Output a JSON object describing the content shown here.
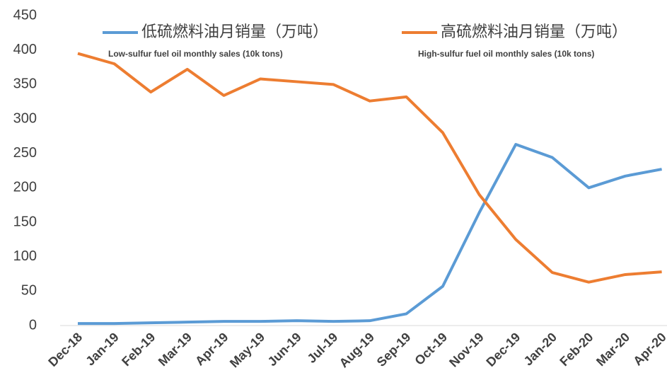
{
  "chart_data": {
    "type": "line",
    "categories": [
      "Dec-18",
      "Jan-19",
      "Feb-19",
      "Mar-19",
      "Apr-19",
      "May-19",
      "Jun-19",
      "Jul-19",
      "Aug-19",
      "Sep-19",
      "Oct-19",
      "Nov-19",
      "Dec-19",
      "Jan-20",
      "Feb-20",
      "Mar-20",
      "Apr-20"
    ],
    "series": [
      {
        "name": "低硫燃料油月销量（万吨）",
        "name_en": "Low-sulfur fuel oil monthly sales (10k tons)",
        "color": "#5b9bd5",
        "values": [
          3,
          3,
          4,
          5,
          6,
          6,
          7,
          6,
          7,
          17,
          57,
          164,
          263,
          244,
          200,
          217,
          227
        ]
      },
      {
        "name": "高硫燃料油月销量（万吨）",
        "name_en": "High-sulfur fuel oil monthly sales (10k tons)",
        "color": "#ed7d31",
        "values": [
          395,
          380,
          339,
          372,
          334,
          358,
          354,
          350,
          326,
          332,
          280,
          190,
          125,
          77,
          63,
          74,
          78
        ]
      }
    ],
    "ylim": [
      0,
      450
    ],
    "yticks": [
      0,
      50,
      100,
      150,
      200,
      250,
      300,
      350,
      400,
      450
    ],
    "grid": false,
    "legend": "top"
  }
}
